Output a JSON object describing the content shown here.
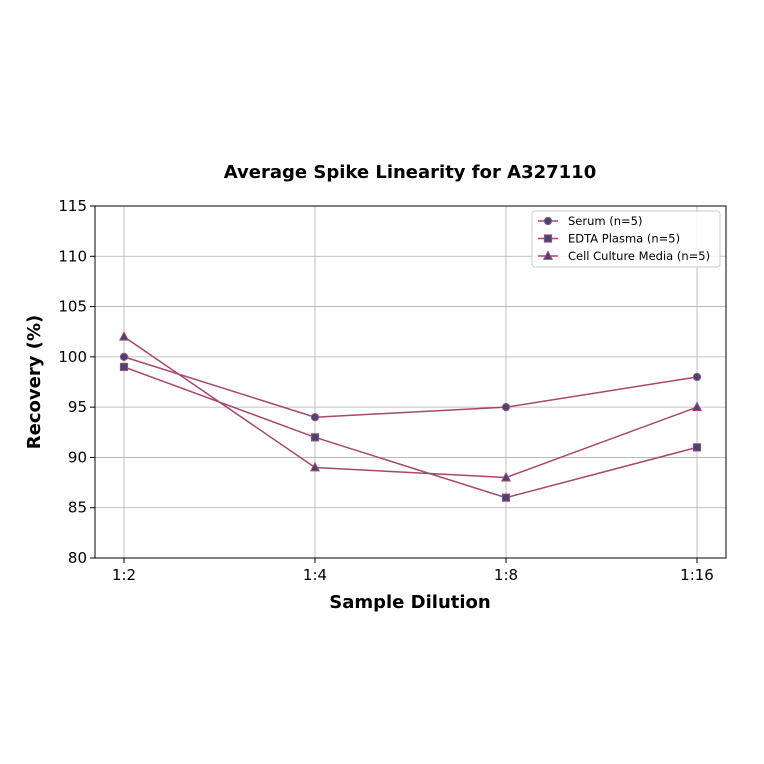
{
  "chart_data": {
    "type": "line",
    "title": "Average Spike Linearity for A327110",
    "xlabel": "Sample Dilution",
    "ylabel": "Recovery (%)",
    "categories": [
      "1:2",
      "1:4",
      "1:8",
      "1:16"
    ],
    "ylim": [
      80,
      115
    ],
    "yticks": [
      80,
      85,
      90,
      95,
      100,
      105,
      110,
      115
    ],
    "grid": true,
    "legend_position": "top-right",
    "line_color": "#a8476b",
    "marker_color": "#3b4a7a",
    "series": [
      {
        "name": "Serum (n=5)",
        "marker": "circle",
        "values": [
          100,
          94,
          95,
          98
        ]
      },
      {
        "name": "EDTA Plasma (n=5)",
        "marker": "square",
        "values": [
          99,
          92,
          86,
          91
        ]
      },
      {
        "name": "Cell Culture Media (n=5)",
        "marker": "triangle",
        "values": [
          102,
          89,
          88,
          95
        ]
      }
    ]
  }
}
